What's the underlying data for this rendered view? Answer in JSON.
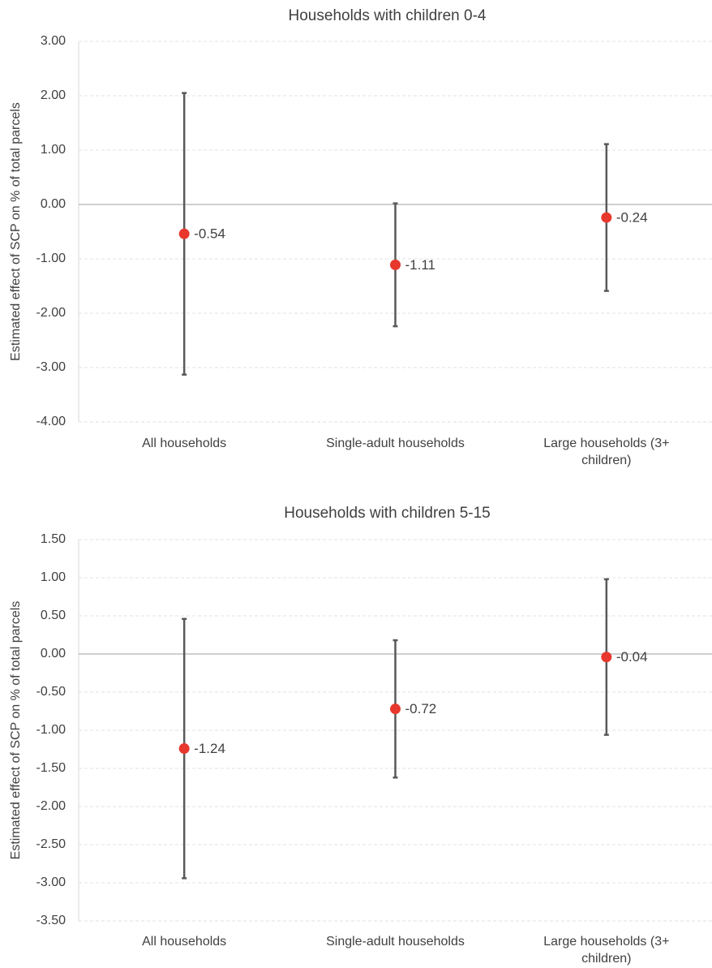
{
  "chart_data": [
    {
      "type": "errorbar",
      "title": "Households with children 0-4",
      "y_label": "Estimated effect of SCP on % of total parcels",
      "categories": [
        "All households",
        "Single-adult households",
        "Large households (3+ children)"
      ],
      "values": [
        -0.54,
        -1.11,
        -0.24
      ],
      "errors": [
        2.59,
        1.13,
        1.35
      ],
      "color": "#e8382d",
      "error_color": "#595959",
      "ylim": [
        -4,
        3
      ],
      "yticks": [
        {
          "value": -4,
          "label": "-4.00"
        },
        {
          "value": -3,
          "label": "-3.00"
        },
        {
          "value": -2,
          "label": "-2.00"
        },
        {
          "value": -1,
          "label": "-1.00"
        },
        {
          "value": 0,
          "label": "0.00"
        },
        {
          "value": 1,
          "label": "1.00"
        },
        {
          "value": 2,
          "label": "2.00"
        },
        {
          "value": 3,
          "label": "3.00"
        }
      ],
      "grid": true
    },
    {
      "type": "errorbar",
      "title": "Households with children 5-15",
      "y_label": "Estimated effect of SCP on % of total parcels",
      "categories": [
        "All households",
        "Single-adult households",
        "Large households (3+ children)"
      ],
      "values": [
        -1.24,
        -0.72,
        -0.04
      ],
      "errors": [
        1.7,
        0.9,
        1.02
      ],
      "color": "#e8382d",
      "error_color": "#595959",
      "ylim": [
        -3.5,
        1.5
      ],
      "yticks": [
        {
          "value": -3.5,
          "label": "-3.50"
        },
        {
          "value": -3,
          "label": "-3.00"
        },
        {
          "value": -2.5,
          "label": "-2.50"
        },
        {
          "value": -2,
          "label": "-2.00"
        },
        {
          "value": -1.5,
          "label": "-1.50"
        },
        {
          "value": -1,
          "label": "-1.00"
        },
        {
          "value": -0.5,
          "label": "-0.50"
        },
        {
          "value": 0,
          "label": "0.00"
        },
        {
          "value": 0.5,
          "label": "0.50"
        },
        {
          "value": 1,
          "label": "1.00"
        },
        {
          "value": 1.5,
          "label": "1.50"
        }
      ],
      "grid": true
    }
  ]
}
